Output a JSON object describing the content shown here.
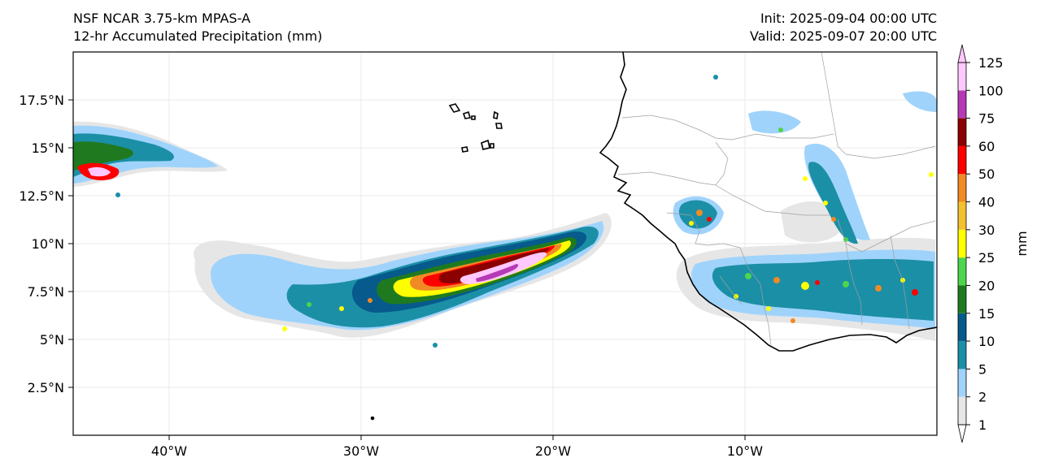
{
  "header": {
    "model": "NSF NCAR 3.75-km MPAS-A",
    "field": "12-hr Accumulated Precipitation (mm)",
    "init": "Init: 2025-09-04 00:00 UTC",
    "valid": "Valid: 2025-09-07 20:00 UTC"
  },
  "map": {
    "lat_ticks": [
      "17.5°N",
      "15°N",
      "12.5°N",
      "10°N",
      "7.5°N",
      "5°N",
      "2.5°N"
    ],
    "lon_ticks": [
      "40°W",
      "30°W",
      "20°W",
      "10°W"
    ],
    "lon_range": [
      -45,
      0
    ],
    "lat_range": [
      0,
      20
    ]
  },
  "colorbar": {
    "label": "mm",
    "ticks": [
      "1",
      "2",
      "5",
      "10",
      "15",
      "20",
      "25",
      "30",
      "40",
      "50",
      "60",
      "75",
      "100",
      "125"
    ],
    "colors": [
      "#e6e6e6",
      "#9fd3fb",
      "#1b8fa6",
      "#065a8c",
      "#1f7a1f",
      "#4ed54e",
      "#ffff00",
      "#f2c12e",
      "#f08a24",
      "#ff0000",
      "#8b0000",
      "#b53ab5",
      "#ffc8ff"
    ]
  },
  "colors": {
    "coastline": "#000000",
    "borders": "#a0a0a0",
    "grid": "#e8e8e8"
  }
}
